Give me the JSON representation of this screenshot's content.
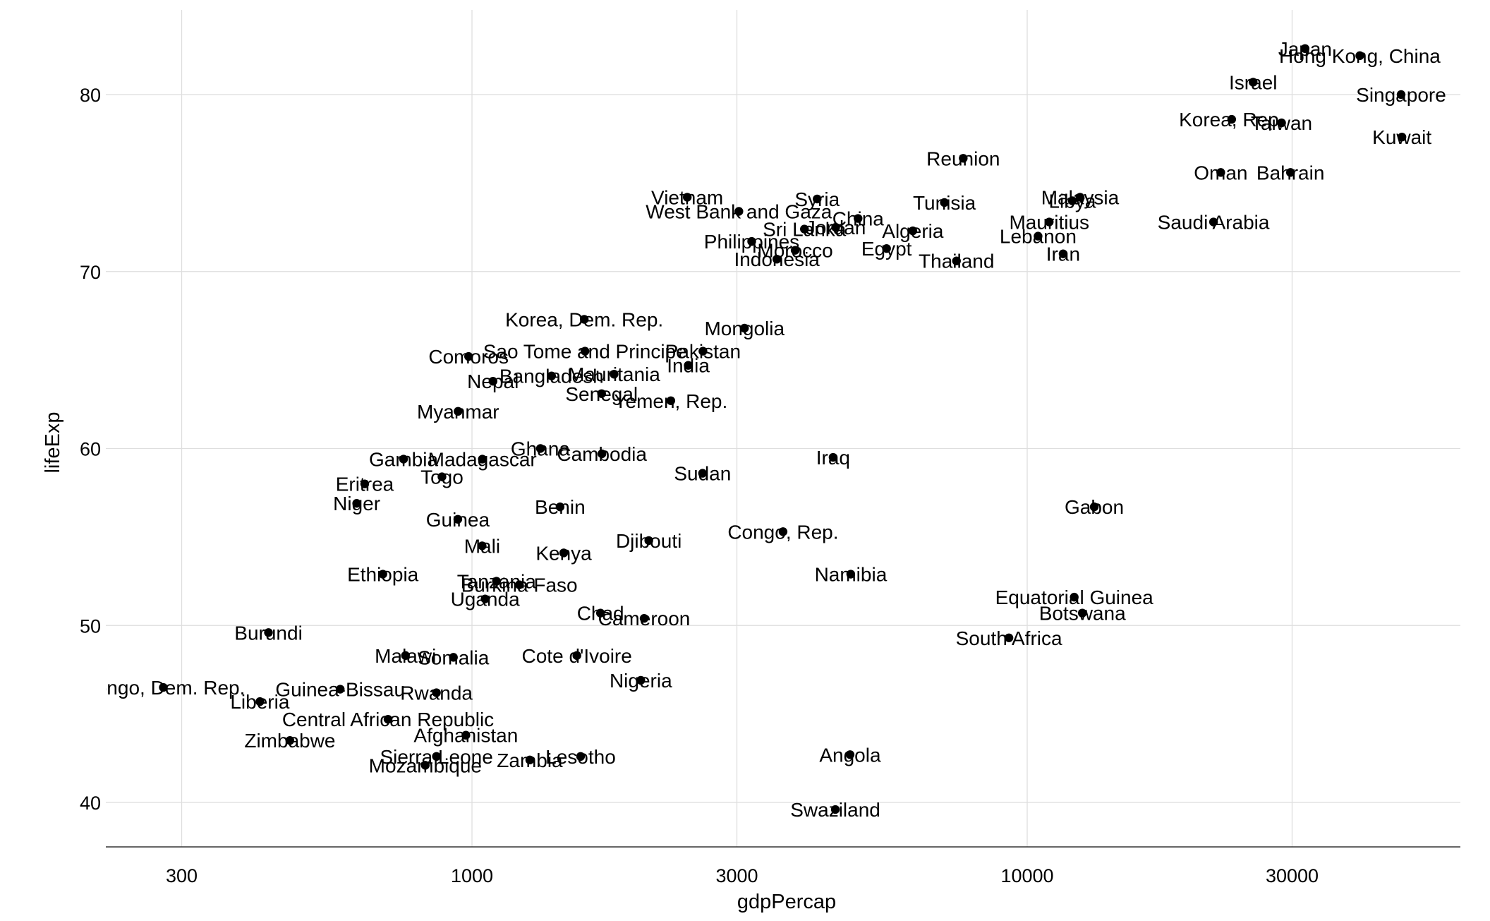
{
  "chart_data": {
    "type": "scatter",
    "title": "",
    "xlabel": "gdpPercap",
    "ylabel": "lifeExp",
    "x_scale": "log10",
    "xlim": [
      210,
      70000
    ],
    "ylim": [
      37.5,
      84.5
    ],
    "x_ticks": [
      300,
      1000,
      3000,
      10000,
      30000
    ],
    "x_tick_labels": [
      "300",
      "1000",
      "3000",
      "10000",
      "30000"
    ],
    "y_ticks": [
      40,
      50,
      60,
      70,
      80
    ],
    "y_tick_labels": [
      "40",
      "50",
      "60",
      "70",
      "80"
    ],
    "grid": true,
    "legend": "none",
    "point_color": "#000000",
    "points": [
      {
        "label": "Japan",
        "x": 31656,
        "y": 82.6
      },
      {
        "label": "Hong Kong, China",
        "x": 39725,
        "y": 82.2
      },
      {
        "label": "Israel",
        "x": 25523,
        "y": 80.7
      },
      {
        "label": "Singapore",
        "x": 47143,
        "y": 80.0
      },
      {
        "label": "Korea, Rep.",
        "x": 23348,
        "y": 78.6
      },
      {
        "label": "Taiwan",
        "x": 28718,
        "y": 78.4
      },
      {
        "label": "Kuwait",
        "x": 47307,
        "y": 77.6
      },
      {
        "label": "Reunion",
        "x": 7670,
        "y": 76.4
      },
      {
        "label": "Oman",
        "x": 22316,
        "y": 75.6
      },
      {
        "label": "Bahrain",
        "x": 29796,
        "y": 75.6
      },
      {
        "label": "Vietnam",
        "x": 2442,
        "y": 74.2
      },
      {
        "label": "Syria",
        "x": 4185,
        "y": 74.1
      },
      {
        "label": "Malaysia",
        "x": 12452,
        "y": 74.2
      },
      {
        "label": "Libya",
        "x": 12057,
        "y": 74.0
      },
      {
        "label": "Tunisia",
        "x": 7093,
        "y": 73.9
      },
      {
        "label": "West Bank and Gaza",
        "x": 3025,
        "y": 73.4
      },
      {
        "label": "China",
        "x": 4959,
        "y": 73.0
      },
      {
        "label": "Mauritius",
        "x": 10957,
        "y": 72.8
      },
      {
        "label": "Saudi Arabia",
        "x": 21655,
        "y": 72.8
      },
      {
        "label": "Jordan",
        "x": 4519,
        "y": 72.5
      },
      {
        "label": "Sri Lanka",
        "x": 3970,
        "y": 72.4
      },
      {
        "label": "Algeria",
        "x": 6223,
        "y": 72.3
      },
      {
        "label": "Lebanon",
        "x": 10461,
        "y": 72.0
      },
      {
        "label": "Philippines",
        "x": 3190,
        "y": 71.7
      },
      {
        "label": "Egypt",
        "x": 5581,
        "y": 71.3
      },
      {
        "label": "Morocco",
        "x": 3820,
        "y": 71.2
      },
      {
        "label": "Iran",
        "x": 11606,
        "y": 71.0
      },
      {
        "label": "Indonesia",
        "x": 3541,
        "y": 70.7
      },
      {
        "label": "Thailand",
        "x": 7458,
        "y": 70.6
      },
      {
        "label": "Korea, Dem. Rep.",
        "x": 1593,
        "y": 67.3
      },
      {
        "label": "Mongolia",
        "x": 3096,
        "y": 66.8
      },
      {
        "label": "Sao Tome and Principe",
        "x": 1598,
        "y": 65.5
      },
      {
        "label": "Pakistan",
        "x": 2606,
        "y": 65.5
      },
      {
        "label": "Comoros",
        "x": 986,
        "y": 65.2
      },
      {
        "label": "India",
        "x": 2452,
        "y": 64.7
      },
      {
        "label": "Bangladesh",
        "x": 1391,
        "y": 64.1
      },
      {
        "label": "Mauritania",
        "x": 1803,
        "y": 64.2
      },
      {
        "label": "Nepal",
        "x": 1091,
        "y": 63.8
      },
      {
        "label": "Senegal",
        "x": 1712,
        "y": 63.1
      },
      {
        "label": "Yemen, Rep.",
        "x": 2281,
        "y": 62.7
      },
      {
        "label": "Myanmar",
        "x": 944,
        "y": 62.1
      },
      {
        "label": "Ghana",
        "x": 1328,
        "y": 60.0
      },
      {
        "label": "Cambodia",
        "x": 1714,
        "y": 59.7
      },
      {
        "label": "Gambia",
        "x": 753,
        "y": 59.4
      },
      {
        "label": "Madagascar",
        "x": 1044,
        "y": 59.4
      },
      {
        "label": "Iraq",
        "x": 4471,
        "y": 59.5
      },
      {
        "label": "Sudan",
        "x": 2602,
        "y": 58.6
      },
      {
        "label": "Togo",
        "x": 883,
        "y": 58.4
      },
      {
        "label": "Eritrea",
        "x": 641,
        "y": 58.0
      },
      {
        "label": "Niger",
        "x": 620,
        "y": 56.9
      },
      {
        "label": "Benin",
        "x": 1441,
        "y": 56.7
      },
      {
        "label": "Gabon",
        "x": 13206,
        "y": 56.7
      },
      {
        "label": "Guinea",
        "x": 943,
        "y": 56.0
      },
      {
        "label": "Congo, Rep.",
        "x": 3633,
        "y": 55.3
      },
      {
        "label": "Djibouti",
        "x": 2082,
        "y": 54.8
      },
      {
        "label": "Mali",
        "x": 1043,
        "y": 54.5
      },
      {
        "label": "Kenya",
        "x": 1463,
        "y": 54.1
      },
      {
        "label": "Ethiopia",
        "x": 691,
        "y": 52.9
      },
      {
        "label": "Namibia",
        "x": 4811,
        "y": 52.9
      },
      {
        "label": "Tanzania",
        "x": 1107,
        "y": 52.5
      },
      {
        "label": "Burkina Faso",
        "x": 1217,
        "y": 52.3
      },
      {
        "label": "Uganda",
        "x": 1056,
        "y": 51.5
      },
      {
        "label": "Equatorial Guinea",
        "x": 12154,
        "y": 51.6
      },
      {
        "label": "Botswana",
        "x": 12570,
        "y": 50.7
      },
      {
        "label": "Chad",
        "x": 1704,
        "y": 50.7
      },
      {
        "label": "Cameroon",
        "x": 2042,
        "y": 50.4
      },
      {
        "label": "Burundi",
        "x": 430,
        "y": 49.6
      },
      {
        "label": "South Africa",
        "x": 9270,
        "y": 49.3
      },
      {
        "label": "Malawi",
        "x": 759,
        "y": 48.3
      },
      {
        "label": "Somalia",
        "x": 926,
        "y": 48.2
      },
      {
        "label": "Cote d'Ivoire",
        "x": 1545,
        "y": 48.3
      },
      {
        "label": "Nigeria",
        "x": 2014,
        "y": 46.9
      },
      {
        "label": "Congo, Dem. Rep.",
        "x": 278,
        "y": 46.5
      },
      {
        "label": "Guinea-Bissau",
        "x": 579,
        "y": 46.4
      },
      {
        "label": "Rwanda",
        "x": 863,
        "y": 46.2
      },
      {
        "label": "Liberia",
        "x": 415,
        "y": 45.7
      },
      {
        "label": "Central African Republic",
        "x": 706,
        "y": 44.7
      },
      {
        "label": "Afghanistan",
        "x": 975,
        "y": 43.8
      },
      {
        "label": "Zimbabwe",
        "x": 470,
        "y": 43.5
      },
      {
        "label": "Angola",
        "x": 4797,
        "y": 42.7
      },
      {
        "label": "Sierra Leone",
        "x": 863,
        "y": 42.6
      },
      {
        "label": "Lesotho",
        "x": 1569,
        "y": 42.6
      },
      {
        "label": "Zambia",
        "x": 1271,
        "y": 42.4
      },
      {
        "label": "Mozambique",
        "x": 824,
        "y": 42.1
      },
      {
        "label": "Swaziland",
        "x": 4513,
        "y": 39.6
      }
    ]
  }
}
